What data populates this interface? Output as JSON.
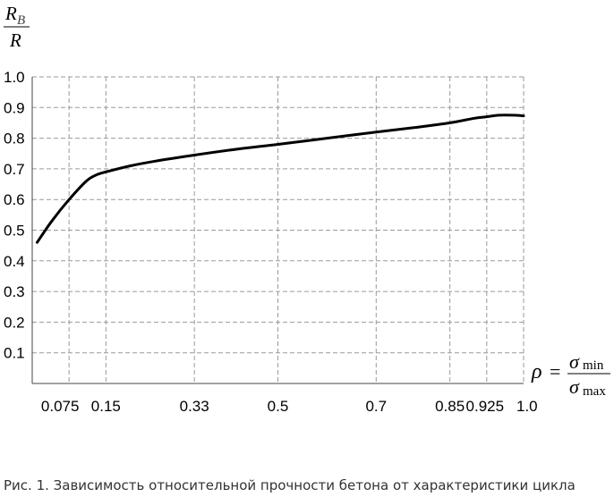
{
  "chart_data": {
    "type": "line",
    "ylabel": {
      "num_main": "R",
      "num_sub": "B",
      "den": "R"
    },
    "xlabel": {
      "lhs": "ρ",
      "eq": "=",
      "num": "σ",
      "num_sub": "min",
      "den": "σ",
      "den_sub": "max"
    },
    "x_ticks": [
      {
        "value": 0.075,
        "label": "0.075"
      },
      {
        "value": 0.15,
        "label": "0.15"
      },
      {
        "value": 0.33,
        "label": "0.33"
      },
      {
        "value": 0.5,
        "label": "0.5"
      },
      {
        "value": 0.7,
        "label": "0.7"
      },
      {
        "value": 0.85,
        "label": "0.85"
      },
      {
        "value": 0.925,
        "label": "0.925"
      },
      {
        "value": 1.0,
        "label": "1.0"
      }
    ],
    "y_ticks": [
      {
        "value": 0.1,
        "label": "0.1"
      },
      {
        "value": 0.2,
        "label": "0.2"
      },
      {
        "value": 0.3,
        "label": "0.3"
      },
      {
        "value": 0.4,
        "label": "0.4"
      },
      {
        "value": 0.5,
        "label": "0.5"
      },
      {
        "value": 0.6,
        "label": "0.6"
      },
      {
        "value": 0.7,
        "label": "0.7"
      },
      {
        "value": 0.8,
        "label": "0.8"
      },
      {
        "value": 0.9,
        "label": "0.9"
      },
      {
        "value": 1.0,
        "label": "1.0"
      }
    ],
    "xlim": [
      0,
      1.0
    ],
    "ylim": [
      0,
      1.0
    ],
    "grid": true,
    "series": [
      {
        "x": [
          0.01,
          0.04,
          0.075,
          0.11,
          0.13,
          0.15,
          0.2,
          0.25,
          0.33,
          0.42,
          0.5,
          0.6,
          0.7,
          0.78,
          0.85,
          0.9,
          0.925,
          0.95,
          0.98,
          1.0
        ],
        "y": [
          0.46,
          0.53,
          0.6,
          0.66,
          0.68,
          0.69,
          0.71,
          0.725,
          0.745,
          0.765,
          0.78,
          0.8,
          0.82,
          0.835,
          0.85,
          0.865,
          0.87,
          0.875,
          0.875,
          0.873
        ]
      }
    ]
  },
  "caption": "Рис. 1. Зависимость относительной прочности бетона от характеристики цикла"
}
